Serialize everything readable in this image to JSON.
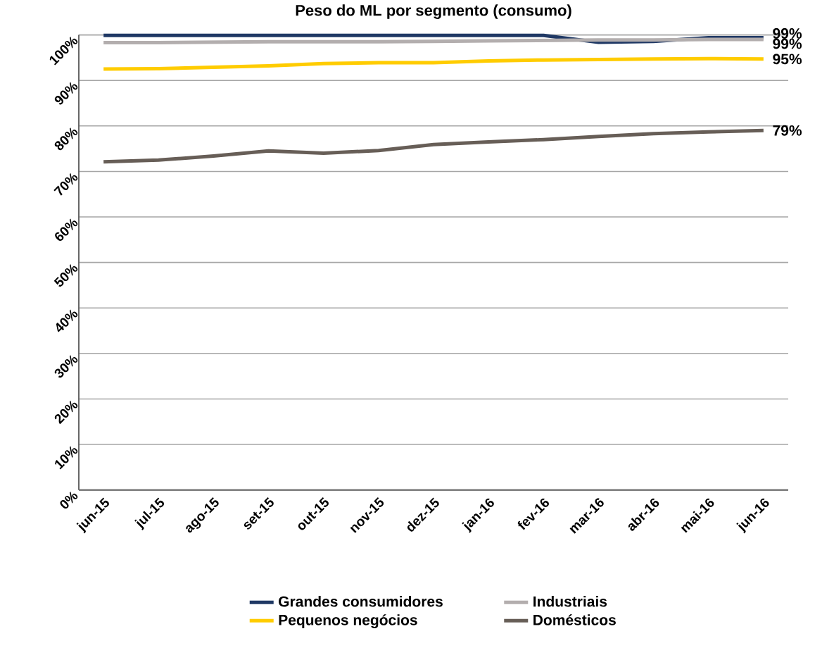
{
  "chart_data": {
    "type": "line",
    "title": "Peso do ML por segmento (consumo)",
    "categories": [
      "jun-15",
      "jul-15",
      "ago-15",
      "set-15",
      "out-15",
      "nov-15",
      "dez-15",
      "jan-16",
      "fev-16",
      "mar-16",
      "abr-16",
      "mai-16",
      "jun-16"
    ],
    "series": [
      {
        "name": "Grandes consumidores",
        "color": "#1f3864",
        "values": [
          99.9,
          99.9,
          99.9,
          99.9,
          99.9,
          99.9,
          99.9,
          99.9,
          99.9,
          98.4,
          98.6,
          99.4,
          99.4
        ],
        "value_labels": [
          null,
          null,
          null,
          null,
          null,
          null,
          null,
          null,
          null,
          null,
          null,
          null,
          "99%"
        ]
      },
      {
        "name": "Industriais",
        "color": "#b3aeae",
        "values": [
          98.3,
          98.3,
          98.4,
          98.5,
          98.5,
          98.5,
          98.6,
          98.7,
          98.8,
          98.9,
          98.9,
          99.0,
          99.0
        ],
        "value_labels": [
          null,
          null,
          null,
          null,
          null,
          null,
          null,
          null,
          null,
          null,
          null,
          null,
          "99%"
        ]
      },
      {
        "name": "Pequenos negócios",
        "color": "#ffcc00",
        "values": [
          92.5,
          92.6,
          92.9,
          93.2,
          93.7,
          93.9,
          93.9,
          94.3,
          94.5,
          94.6,
          94.7,
          94.8,
          94.7
        ],
        "value_labels": [
          null,
          null,
          null,
          null,
          null,
          null,
          null,
          null,
          null,
          null,
          null,
          null,
          "95%"
        ]
      },
      {
        "name": "Domésticos",
        "color": "#675e57",
        "values": [
          72.1,
          72.5,
          73.4,
          74.5,
          74.0,
          74.6,
          75.9,
          76.5,
          77.0,
          77.7,
          78.3,
          78.7,
          79.0
        ],
        "value_labels": [
          null,
          null,
          null,
          null,
          null,
          null,
          null,
          null,
          null,
          null,
          null,
          null,
          "79%"
        ]
      }
    ],
    "ylim": [
      0,
      100
    ],
    "yticks": [
      {
        "value": 0,
        "label": "0%"
      },
      {
        "value": 10,
        "label": "10%"
      },
      {
        "value": 20,
        "label": "20%"
      },
      {
        "value": 30,
        "label": "30%"
      },
      {
        "value": 40,
        "label": "40%"
      },
      {
        "value": 50,
        "label": "50%"
      },
      {
        "value": 60,
        "label": "60%"
      },
      {
        "value": 70,
        "label": "70%"
      },
      {
        "value": 80,
        "label": "80%"
      },
      {
        "value": 90,
        "label": "90%"
      },
      {
        "value": 100,
        "label": "100%"
      }
    ],
    "grid": "y",
    "legend": "bottom",
    "marker": "none",
    "line_style": "solid"
  }
}
